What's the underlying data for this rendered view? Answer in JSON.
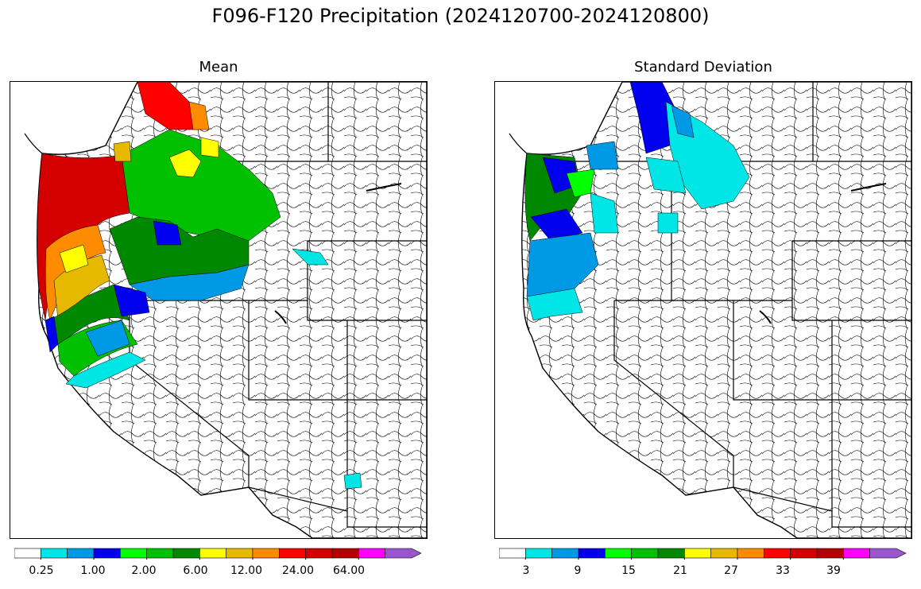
{
  "figure": {
    "title": "F096-F120 Precipitation (2024120700-2024120800)"
  },
  "panels": [
    {
      "title": "Mean",
      "colorbar": {
        "colors": [
          "#ffffff",
          "#00e5e5",
          "#0099e6",
          "#0000ee",
          "#00ff00",
          "#00c000",
          "#008800",
          "#ffff00",
          "#e6b800",
          "#ff8c00",
          "#ff0000",
          "#d40000",
          "#b30000",
          "#ff00ff",
          "#9955cc"
        ],
        "tick_labels": [
          "0.25",
          "1.00",
          "2.00",
          "6.00",
          "12.00",
          "24.00",
          "64.00"
        ]
      }
    },
    {
      "title": "Standard Deviation",
      "colorbar": {
        "colors": [
          "#ffffff",
          "#00e5e5",
          "#0099e6",
          "#0000ee",
          "#00ff00",
          "#00c000",
          "#008800",
          "#ffff00",
          "#e6b800",
          "#ff8c00",
          "#ff0000",
          "#d40000",
          "#b30000",
          "#ff00ff",
          "#9955cc"
        ],
        "tick_labels": [
          "3",
          "9",
          "15",
          "21",
          "27",
          "33",
          "39"
        ]
      }
    }
  ]
}
